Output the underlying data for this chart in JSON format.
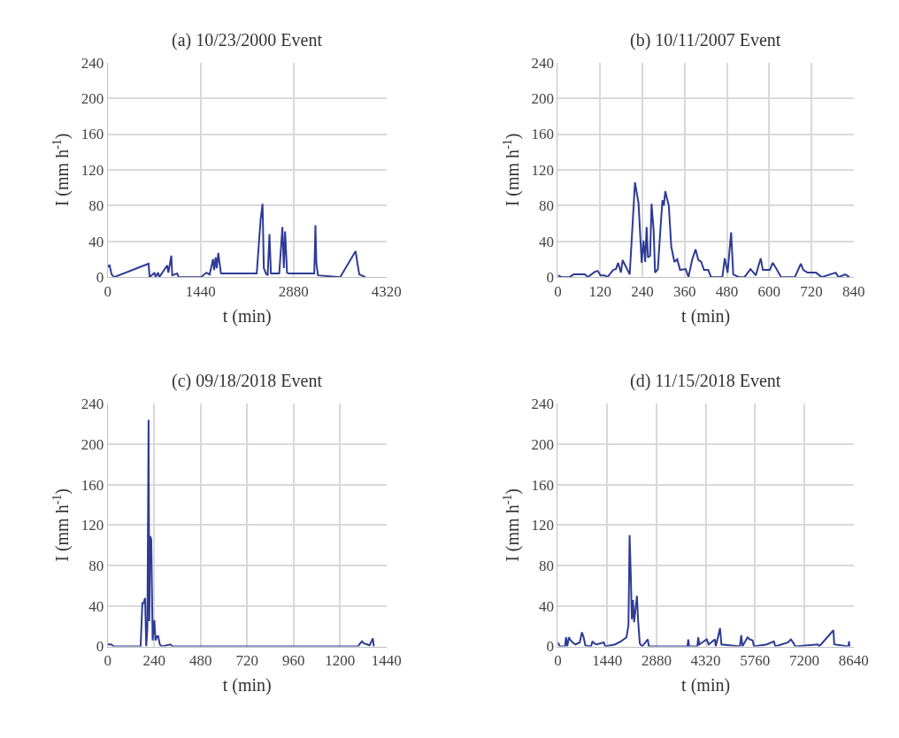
{
  "chart_data": [
    {
      "type": "line",
      "title": "(a) 10/23/2000 Event",
      "xlabel": "t (min)",
      "ylabel": "I (mm h$^{-1}$)",
      "xlim": [
        0,
        4320
      ],
      "xticks": [
        0,
        1440,
        2880,
        4320
      ],
      "ylim": [
        0,
        240
      ],
      "yticks": [
        0,
        40,
        80,
        120,
        160,
        200,
        240
      ],
      "grid": true,
      "marker": "none",
      "line_style": "solid",
      "series": [
        {
          "color": "#2e3b95",
          "x": [
            0,
            29,
            60,
            100,
            633,
            650,
            727,
            740,
            781,
            800,
            921,
            940,
            986,
            1000,
            1077,
            1100,
            1447,
            1529,
            1580,
            1632,
            1650,
            1673,
            1690,
            1714,
            1755,
            2310,
            2371,
            2400,
            2420,
            2454,
            2480,
            2507,
            2530,
            2556,
            2659,
            2708,
            2730,
            2750,
            2780,
            2803,
            3202,
            3220,
            3235,
            3260,
            3604,
            3843,
            3872,
            3900,
            3995
          ],
          "values": [
            12,
            13,
            3,
            0,
            15,
            0,
            5,
            0,
            5,
            0,
            13,
            5,
            24,
            2,
            4,
            0,
            0,
            5,
            3,
            20,
            8,
            22,
            10,
            27,
            4,
            4,
            65,
            82,
            10,
            4,
            2,
            48,
            4,
            4,
            4,
            56,
            10,
            51,
            5,
            4,
            4,
            58,
            15,
            2,
            0,
            29,
            15,
            3,
            0
          ]
        }
      ]
    },
    {
      "type": "line",
      "title": "(b) 10/11/2007 Event",
      "xlabel": "t (min)",
      "ylabel": "I (mm h$^{-1}$)",
      "xlim": [
        0,
        840
      ],
      "xticks": [
        0,
        120,
        240,
        360,
        480,
        600,
        720,
        840
      ],
      "ylim": [
        0,
        240
      ],
      "yticks": [
        0,
        40,
        80,
        120,
        160,
        200,
        240
      ],
      "grid": true,
      "marker": "none",
      "line_style": "solid",
      "series": [
        {
          "color": "#2e3b95",
          "x": [
            0,
            10,
            33,
            45,
            77,
            85,
            105,
            113,
            121,
            133,
            141,
            157,
            165,
            171,
            179,
            184,
            204,
            219,
            229,
            238,
            243,
            248,
            252,
            256,
            262,
            266,
            272,
            276,
            284,
            292,
            297,
            301,
            305,
            315,
            322,
            331,
            339,
            347,
            363,
            371,
            381,
            391,
            399,
            407,
            415,
            427,
            435,
            467,
            474,
            482,
            492,
            498,
            514,
            530,
            547,
            562,
            576,
            582,
            602,
            610,
            618,
            634,
            673,
            690,
            697,
            709,
            733,
            749,
            789,
            797,
            816,
            828
          ],
          "values": [
            2,
            0,
            0,
            3,
            3,
            0,
            6,
            7,
            2,
            2,
            0,
            8,
            9,
            16,
            5,
            19,
            3,
            106,
            83,
            16,
            41,
            17,
            56,
            22,
            24,
            82,
            52,
            5,
            9,
            58,
            86,
            80,
            96,
            80,
            34,
            17,
            20,
            8,
            9,
            0,
            19,
            31,
            19,
            17,
            8,
            8,
            0,
            0,
            21,
            5,
            50,
            3,
            0,
            0,
            9,
            2,
            21,
            8,
            8,
            16,
            11,
            0,
            0,
            15,
            8,
            5,
            5,
            0,
            5,
            0,
            3,
            0
          ]
        }
      ]
    },
    {
      "type": "line",
      "title": "(c) 09/18/2018 Event",
      "xlabel": "t (min)",
      "ylabel": "I (mm h$^{-1}$)",
      "xlim": [
        0,
        1440
      ],
      "xticks": [
        0,
        240,
        480,
        720,
        960,
        1200,
        1440
      ],
      "ylim": [
        0,
        240
      ],
      "yticks": [
        0,
        40,
        80,
        120,
        160,
        200,
        240
      ],
      "grid": true,
      "marker": "none",
      "line_style": "solid",
      "series": [
        {
          "color": "#2e3b95",
          "x": [
            0,
            18,
            32,
            170,
            179,
            186,
            193,
            199,
            205,
            211,
            215,
            219,
            225,
            232,
            241,
            247,
            255,
            261,
            269,
            280,
            324,
            335,
            1294,
            1300,
            1314,
            1324,
            1342,
            1353,
            1370,
            1375
          ],
          "values": [
            2,
            2,
            0,
            0,
            43,
            43,
            48,
            0,
            18,
            224,
            25,
            109,
            106,
            6,
            26,
            6,
            10,
            10,
            2,
            0,
            2,
            0,
            0,
            2,
            5,
            3,
            2,
            1,
            8,
            0
          ]
        }
      ]
    },
    {
      "type": "line",
      "title": "(d) 11/15/2018 Event",
      "xlabel": "t (min)",
      "ylabel": "I (mm h$^{-1}$)",
      "xlim": [
        0,
        8640
      ],
      "xticks": [
        0,
        1440,
        2880,
        4320,
        5760,
        7200,
        8640
      ],
      "ylim": [
        0,
        240
      ],
      "yticks": [
        0,
        40,
        80,
        120,
        160,
        200,
        240
      ],
      "grid": true,
      "marker": "none",
      "line_style": "solid",
      "series": [
        {
          "color": "#2e3b95",
          "x": [
            0,
            58,
            207,
            240,
            273,
            323,
            373,
            431,
            513,
            638,
            704,
            753,
            803,
            969,
            1010,
            1068,
            1134,
            1341,
            1383,
            1673,
            1838,
            2004,
            2062,
            2095,
            2128,
            2161,
            2194,
            2227,
            2310,
            2343,
            2393,
            2459,
            2625,
            2658,
            3784,
            3809,
            3834,
            4074,
            4099,
            4132,
            4347,
            4405,
            4587,
            4612,
            4736,
            4778,
            5316,
            5357,
            5390,
            5539,
            5605,
            5688,
            5730,
            6102,
            6309,
            6351,
            6724,
            6806,
            6889,
            6930,
            7593,
            7635,
            8048,
            8073,
            8487,
            8503,
            8520
          ],
          "values": [
            4,
            0,
            0,
            9,
            0,
            9,
            6,
            4,
            2,
            4,
            14,
            9,
            1,
            0,
            5,
            3,
            2,
            4,
            0,
            2,
            5,
            9,
            21,
            110,
            73,
            27,
            46,
            24,
            50,
            26,
            3,
            0,
            7,
            0,
            0,
            7,
            0,
            0,
            9,
            2,
            7,
            2,
            7,
            0,
            18,
            2,
            0,
            11,
            0,
            9,
            7,
            6,
            0,
            2,
            5,
            0,
            4,
            7,
            3,
            0,
            2,
            0,
            16,
            2,
            0,
            5,
            0
          ]
        }
      ]
    }
  ]
}
